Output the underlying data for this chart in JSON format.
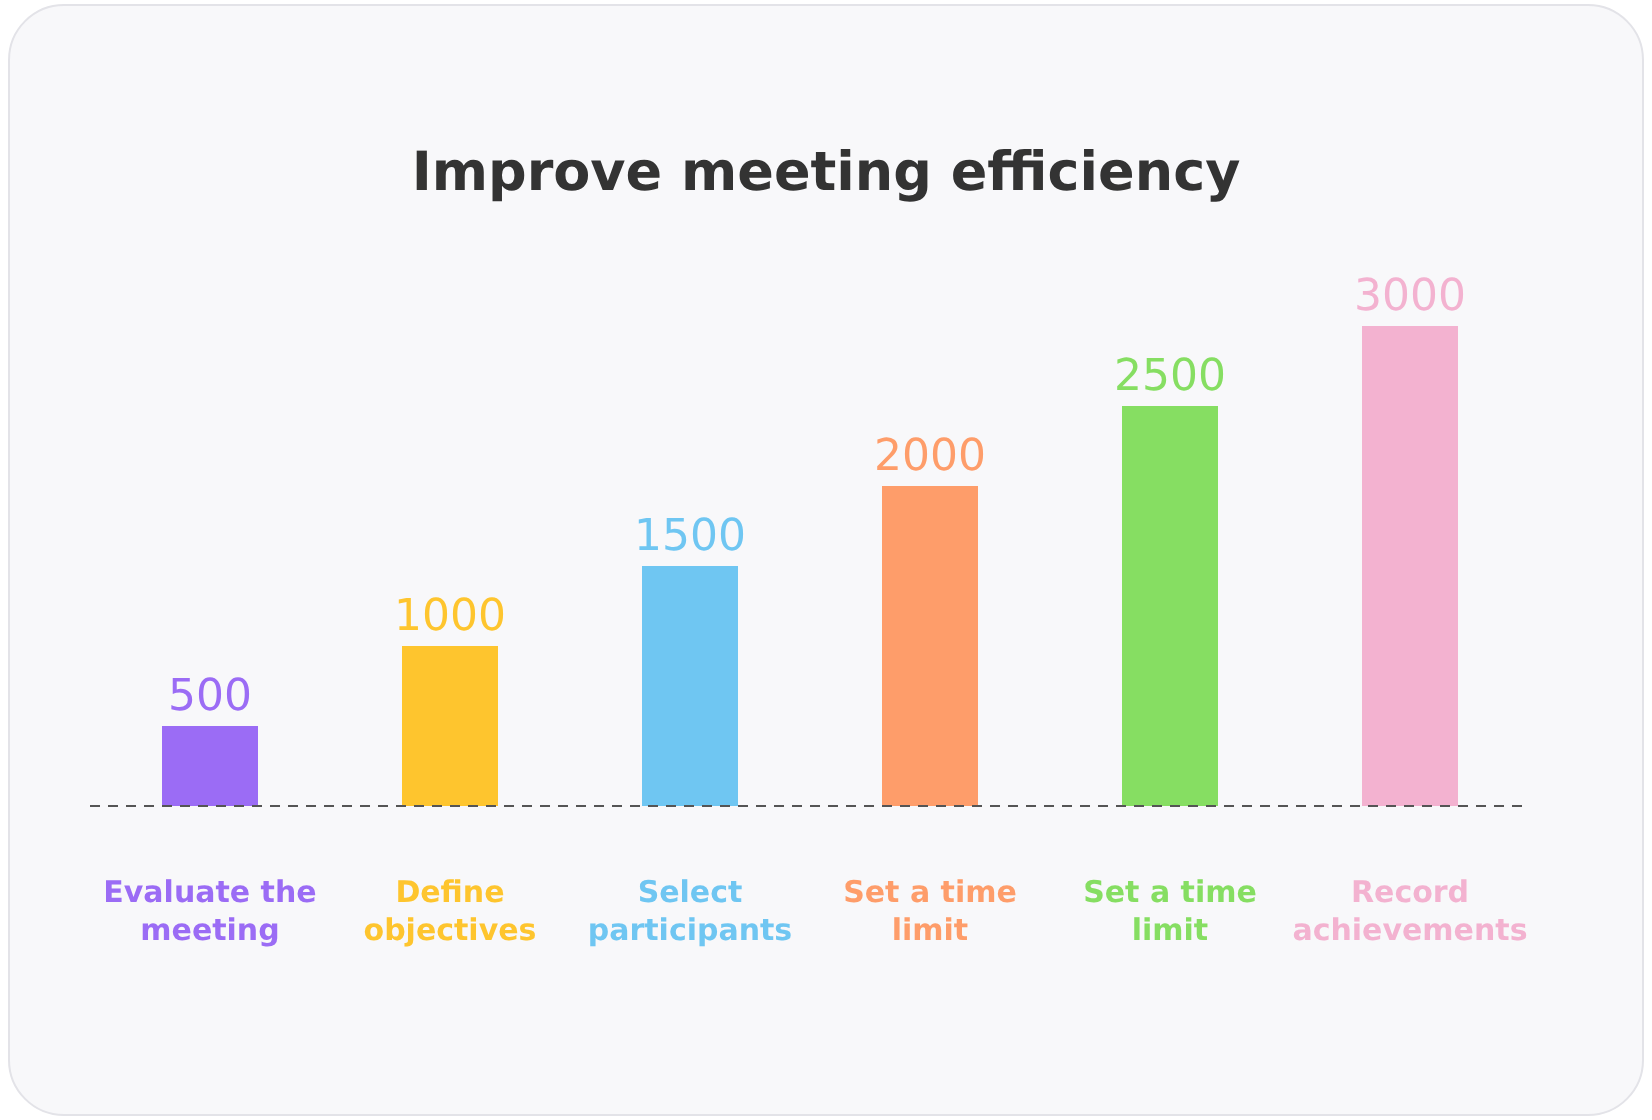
{
  "chart_data": {
    "type": "bar",
    "title": "Improve meeting efficiency",
    "categories": [
      "Evaluate the meeting",
      "Define objectives",
      "Select participants",
      "Set a time limit",
      "Set a time limit",
      "Record achievements"
    ],
    "values": [
      500,
      1000,
      1500,
      2000,
      2500,
      3000
    ],
    "colors": [
      "#9b6cf5",
      "#fec52e",
      "#6fc6f2",
      "#fe9d6a",
      "#86de62",
      "#f3b2d0"
    ],
    "data_labels": true
  }
}
